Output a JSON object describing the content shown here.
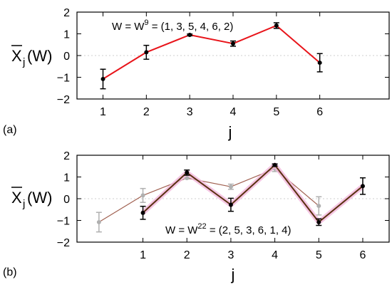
{
  "chart_data": [
    {
      "panel": "(a)",
      "type": "line",
      "annotation": {
        "prefix": "W = W",
        "superscript": "9",
        "suffix": " = (1, 3, 5, 4, 6, 2)"
      },
      "y_label": {
        "base": "X",
        "sub": "j",
        "paren": "(W)"
      },
      "x_label": "j",
      "x_ticks": [
        "1",
        "2",
        "3",
        "4",
        "5",
        "6"
      ],
      "y_ticks": [
        "2",
        "1",
        "0",
        "−1",
        "−2"
      ],
      "xlim": [
        0.4,
        7.6
      ],
      "ylim": [
        -2,
        2
      ],
      "grid": "dashed line at y=0",
      "series": [
        {
          "color": "#e8141a",
          "x": [
            1,
            2,
            3,
            4,
            5,
            6
          ],
          "y": [
            -1.08,
            0.15,
            0.95,
            0.55,
            1.38,
            -0.33
          ],
          "err": [
            0.45,
            0.32,
            0.04,
            0.12,
            0.13,
            0.42
          ]
        }
      ]
    },
    {
      "panel": "(b)",
      "type": "line",
      "annotation": {
        "prefix": "W = W",
        "superscript": "22",
        "suffix": " = (2, 5, 3, 6, 1, 4)"
      },
      "y_label": {
        "base": "X",
        "sub": "j",
        "paren": "(W)"
      },
      "x_label": "j",
      "x_ticks": [
        "1",
        "2",
        "3",
        "4",
        "5",
        "6"
      ],
      "y_ticks": [
        "2",
        "1",
        "0",
        "−1",
        "−2"
      ],
      "xlim": [
        -0.5,
        6.6
      ],
      "ylim": [
        -2,
        2
      ],
      "grid": "dashed line at y=0",
      "series": [
        {
          "color": "#a06050",
          "point_color": "#b0b0b0",
          "x": [
            0,
            1,
            2,
            3,
            4,
            5
          ],
          "y": [
            -1.08,
            0.15,
            0.95,
            0.55,
            1.38,
            -0.33
          ],
          "err": [
            0.45,
            0.32,
            0.04,
            0.12,
            0.13,
            0.42
          ]
        },
        {
          "color": "#5a3010",
          "halo_color": "#f2b8dc",
          "point_color": "#000000",
          "x": [
            1,
            2,
            3,
            4,
            5,
            6
          ],
          "y": [
            -0.65,
            1.2,
            -0.28,
            1.55,
            -1.08,
            0.58
          ],
          "err": [
            0.3,
            0.12,
            0.3,
            0.05,
            0.15,
            0.38
          ]
        }
      ]
    }
  ]
}
